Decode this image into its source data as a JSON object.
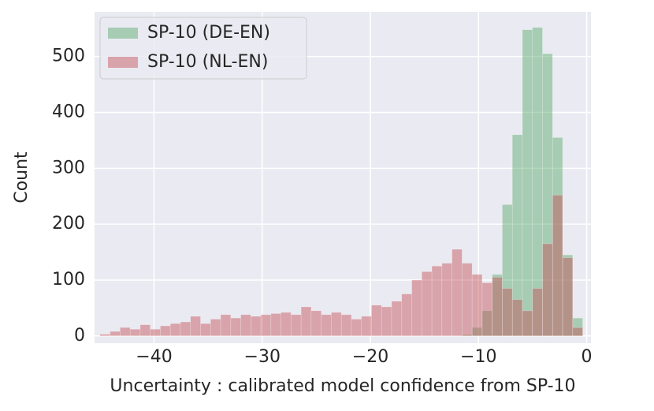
{
  "chart_data": {
    "type": "histogram",
    "xlabel": "Uncertainty : calibrated model confidence from SP-10",
    "ylabel": "Count",
    "bins": [
      -45,
      -44.07,
      -43.14,
      -42.21,
      -41.28,
      -40.35,
      -39.42,
      -38.49,
      -37.56,
      -36.63,
      -35.7,
      -34.77,
      -33.84,
      -32.91,
      -31.98,
      -31.05,
      -30.12,
      -29.19,
      -28.26,
      -27.33,
      -26.4,
      -25.47,
      -24.54,
      -23.61,
      -22.68,
      -21.75,
      -20.82,
      -19.89,
      -18.96,
      -18.03,
      -17.1,
      -16.17,
      -15.24,
      -14.31,
      -13.38,
      -12.45,
      -11.52,
      -10.59,
      -9.66,
      -8.73,
      -7.8,
      -6.87,
      -5.94,
      -5.01,
      -4.08,
      -3.15,
      -2.22,
      -1.29,
      -0.36
    ],
    "series": [
      {
        "name": "SP-10 (DE-EN)",
        "color": "#55a868",
        "values": [
          0,
          0,
          0,
          0,
          0,
          0,
          0,
          0,
          0,
          0,
          0,
          0,
          0,
          0,
          0,
          0,
          0,
          0,
          0,
          0,
          0,
          0,
          0,
          0,
          0,
          0,
          0,
          0,
          0,
          0,
          0,
          0,
          0,
          0,
          0,
          0,
          2,
          15,
          45,
          110,
          235,
          360,
          548,
          552,
          505,
          355,
          145,
          32
        ]
      },
      {
        "name": "SP-10 (NL-EN)",
        "color": "#c44e52",
        "values": [
          3,
          8,
          15,
          12,
          20,
          12,
          18,
          22,
          25,
          35,
          22,
          30,
          38,
          32,
          38,
          35,
          38,
          40,
          42,
          38,
          52,
          45,
          38,
          42,
          38,
          30,
          35,
          55,
          52,
          62,
          75,
          100,
          115,
          125,
          130,
          155,
          130,
          110,
          95,
          105,
          85,
          65,
          45,
          85,
          165,
          252,
          140,
          15
        ]
      }
    ],
    "xlim": [
      -45.5,
      0.4
    ],
    "ylim": [
      -13,
      580
    ],
    "xticks": [
      {
        "value": -40,
        "label": "−40"
      },
      {
        "value": -30,
        "label": "−30"
      },
      {
        "value": -20,
        "label": "−20"
      },
      {
        "value": -10,
        "label": "−10"
      },
      0
    ],
    "yticks": [
      0,
      100,
      200,
      300,
      400,
      500
    ],
    "grid": true,
    "legend": "upper left"
  }
}
